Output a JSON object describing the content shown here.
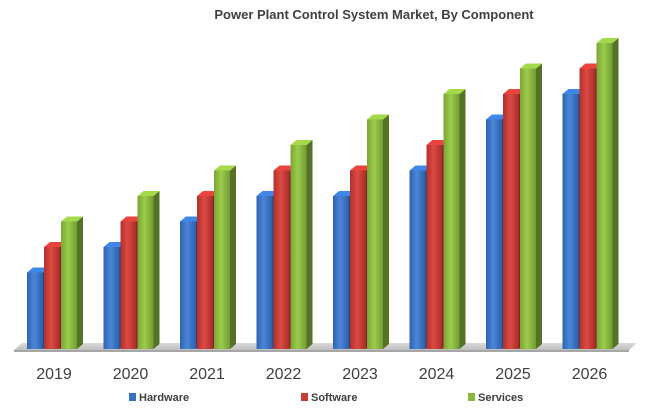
{
  "chart_data": {
    "type": "bar",
    "title": "Power Plant Control System Market, By Component",
    "xlabel": "",
    "ylabel": "",
    "categories": [
      "2019",
      "2020",
      "2021",
      "2022",
      "2023",
      "2024",
      "2025",
      "2026"
    ],
    "series": [
      {
        "name": "Hardware",
        "color": "#3572c6",
        "values": [
          3,
          4,
          5,
          6,
          6,
          7,
          9,
          10
        ]
      },
      {
        "name": "Software",
        "color": "#c73a35",
        "values": [
          4,
          5,
          6,
          7,
          7,
          8,
          10,
          11
        ]
      },
      {
        "name": "Services",
        "color": "#8ab83f",
        "values": [
          5,
          6,
          7,
          8,
          9,
          10,
          11,
          12
        ]
      }
    ],
    "ylim": [
      0,
      12
    ],
    "grid": false,
    "legend": "bottom"
  }
}
